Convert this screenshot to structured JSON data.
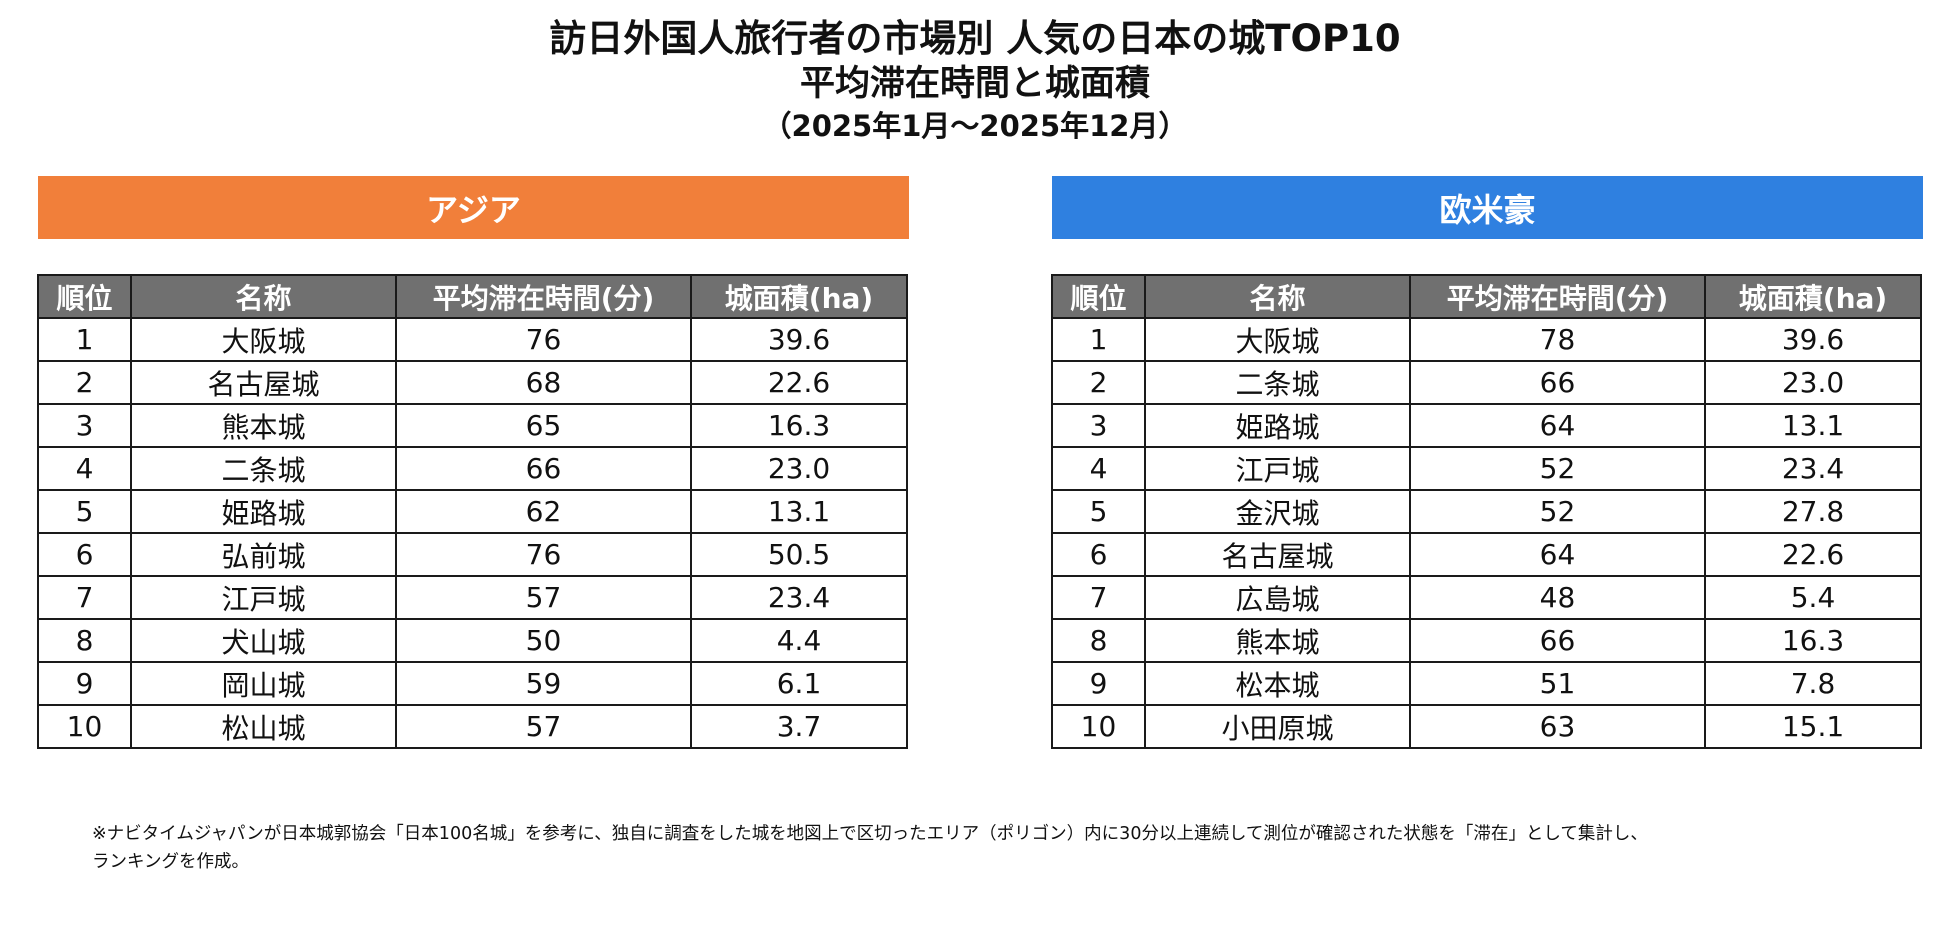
{
  "header": {
    "title_line1": "訪日外国人旅行者の市場別 人気の日本の城TOP10",
    "title_line2": "平均滞在時間と城面積",
    "title_line3": "（2025年1月～2025年12月）"
  },
  "colors": {
    "asia_banner": "#f17f3a",
    "west_banner": "#2f80e0",
    "table_header": "#707070"
  },
  "columns": [
    "順位",
    "名称",
    "平均滞在時間(分)",
    "城面積(ha)"
  ],
  "asia": {
    "label": "アジア",
    "rows": [
      {
        "rank": "1",
        "name": "大阪城",
        "minutes": "76",
        "area": "39.6"
      },
      {
        "rank": "2",
        "name": "名古屋城",
        "minutes": "68",
        "area": "22.6"
      },
      {
        "rank": "3",
        "name": "熊本城",
        "minutes": "65",
        "area": "16.3"
      },
      {
        "rank": "4",
        "name": "二条城",
        "minutes": "66",
        "area": "23.0"
      },
      {
        "rank": "5",
        "name": "姫路城",
        "minutes": "62",
        "area": "13.1"
      },
      {
        "rank": "6",
        "name": "弘前城",
        "minutes": "76",
        "area": "50.5"
      },
      {
        "rank": "7",
        "name": "江戸城",
        "minutes": "57",
        "area": "23.4"
      },
      {
        "rank": "8",
        "name": "犬山城",
        "minutes": "50",
        "area": "4.4"
      },
      {
        "rank": "9",
        "name": "岡山城",
        "minutes": "59",
        "area": "6.1"
      },
      {
        "rank": "10",
        "name": "松山城",
        "minutes": "57",
        "area": "3.7"
      }
    ]
  },
  "west": {
    "label": "欧米豪",
    "rows": [
      {
        "rank": "1",
        "name": "大阪城",
        "minutes": "78",
        "area": "39.6"
      },
      {
        "rank": "2",
        "name": "二条城",
        "minutes": "66",
        "area": "23.0"
      },
      {
        "rank": "3",
        "name": "姫路城",
        "minutes": "64",
        "area": "13.1"
      },
      {
        "rank": "4",
        "name": "江戸城",
        "minutes": "52",
        "area": "23.4"
      },
      {
        "rank": "5",
        "name": "金沢城",
        "minutes": "52",
        "area": "27.8"
      },
      {
        "rank": "6",
        "name": "名古屋城",
        "minutes": "64",
        "area": "22.6"
      },
      {
        "rank": "7",
        "name": "広島城",
        "minutes": "48",
        "area": "5.4"
      },
      {
        "rank": "8",
        "name": "熊本城",
        "minutes": "66",
        "area": "16.3"
      },
      {
        "rank": "9",
        "name": "松本城",
        "minutes": "51",
        "area": "7.8"
      },
      {
        "rank": "10",
        "name": "小田原城",
        "minutes": "63",
        "area": "15.1"
      }
    ]
  },
  "footnote": {
    "line1": "※ナビタイムジャパンが日本城郭協会「日本100名城」を参考に、独自に調査をした城を地図上で区切ったエリア（ポリゴン）内に30分以上連続して測位が確認された状態を「滞在」として集計し、",
    "line2": "ランキングを作成。"
  }
}
